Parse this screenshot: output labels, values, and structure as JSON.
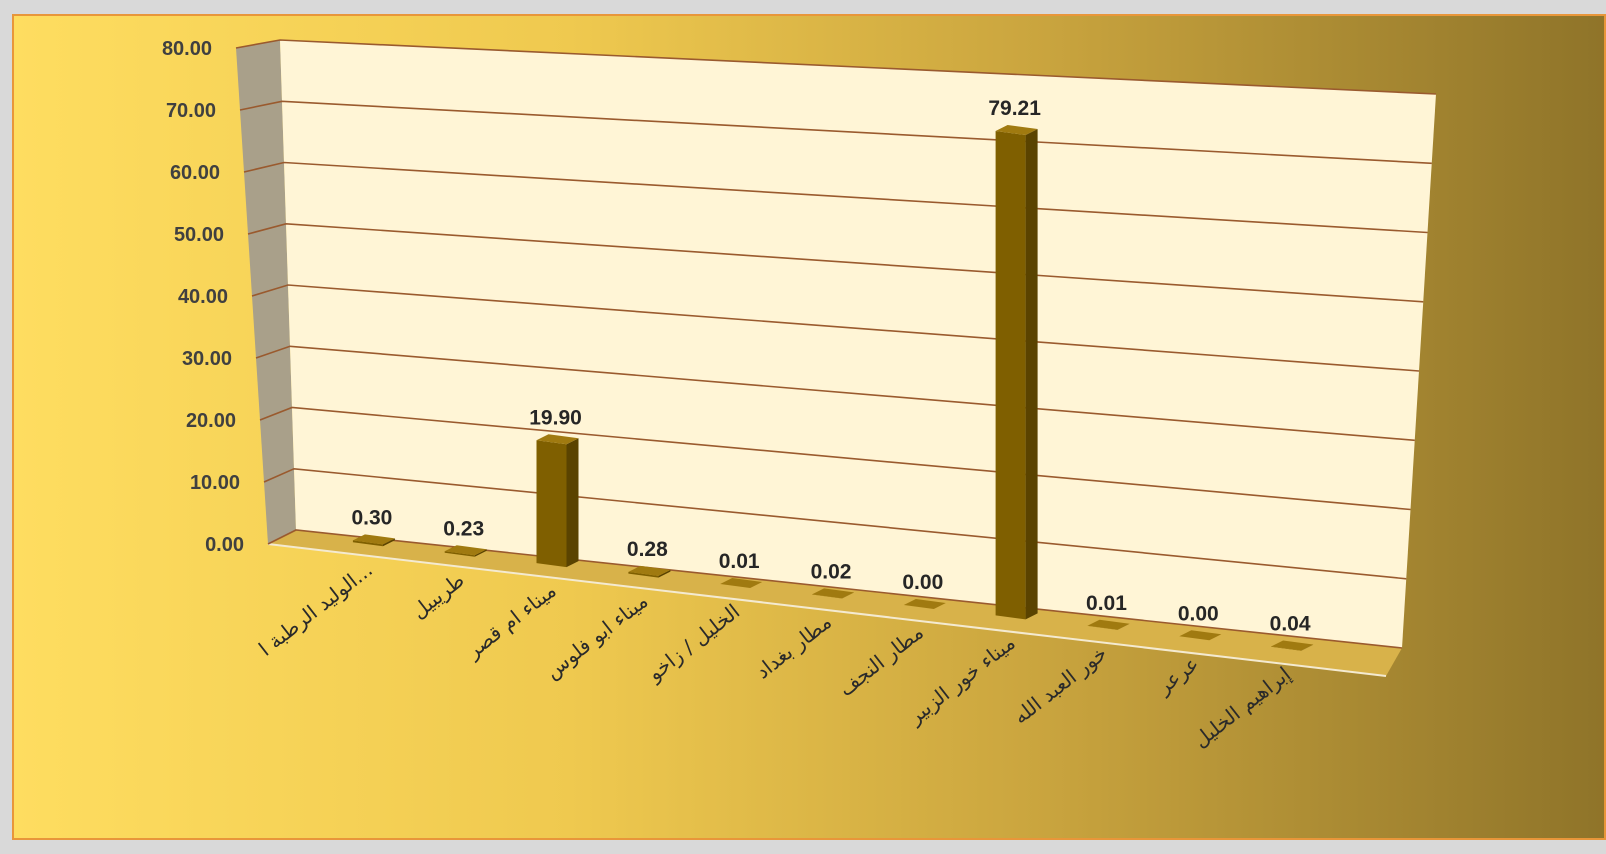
{
  "chart_data": {
    "type": "bar",
    "style": "3d-column",
    "categories": [
      "الوليد الرطبة ا...",
      "طريبيل",
      "ميناء ام قصر",
      "ميناء ابو فلوس",
      "الخليل / زاخو",
      "مطار بغداد",
      "مطار النجف",
      "ميناء خور الزبير",
      "خور العبد الله",
      "عرعر",
      "إبراهيم الخليل"
    ],
    "values": [
      0.3,
      0.23,
      19.9,
      0.28,
      0.01,
      0.02,
      0.0,
      79.21,
      0.01,
      0.0,
      0.04
    ],
    "data_labels": [
      "0.30",
      "0.23",
      "19.90",
      "0.28",
      "0.01",
      "0.02",
      "0.00",
      "79.21",
      "0.01",
      "0.00",
      "0.04"
    ],
    "y_ticks": [
      "0.00",
      "10.00",
      "20.00",
      "30.00",
      "40.00",
      "50.00",
      "60.00",
      "70.00",
      "80.00"
    ],
    "ylim": [
      0,
      80
    ],
    "grid": true,
    "legend": "none",
    "colors": {
      "bar_front": "#7f5f00",
      "bar_side": "#5a4300",
      "bar_top": "#a07a10",
      "back_wall": "#fff5d6",
      "side_wall": "#a9a08a",
      "floor": "#d8b24a",
      "gridline": "#9a5a2e"
    }
  }
}
